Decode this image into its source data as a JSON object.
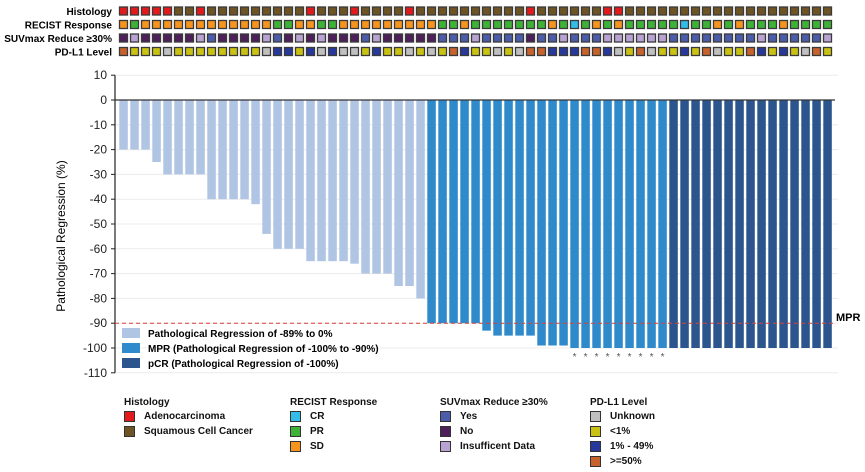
{
  "chart_data": {
    "type": "bar",
    "ylabel": "Pathological Regression (%)",
    "ylim": [
      -110,
      10
    ],
    "yticks": [
      10,
      0,
      -10,
      -20,
      -30,
      -40,
      -50,
      -60,
      -70,
      -80,
      -90,
      -100,
      -110
    ],
    "grid": true,
    "reference_line": {
      "value": -90,
      "label": "MPR",
      "color": "#d9413a"
    },
    "values": [
      -20,
      -20,
      -20,
      -25,
      -30,
      -30,
      -30,
      -30,
      -40,
      -40,
      -40,
      -40,
      -42,
      -54,
      -60,
      -60,
      -60,
      -65,
      -65,
      -65,
      -65,
      -66,
      -70,
      -70,
      -70,
      -75,
      -75,
      -80,
      -90,
      -90,
      -90,
      -90,
      -90,
      -93,
      -95,
      -95,
      -95,
      -95,
      -99,
      -99,
      -99,
      -100,
      -100,
      -100,
      -100,
      -100,
      -100,
      -100,
      -100,
      -100,
      -100,
      -100,
      -100,
      -100,
      -100,
      -100,
      -100,
      -100,
      -100,
      -100,
      -100,
      -100,
      -100,
      -100,
      -100
    ],
    "groups": [
      "light",
      "light",
      "light",
      "light",
      "light",
      "light",
      "light",
      "light",
      "light",
      "light",
      "light",
      "light",
      "light",
      "light",
      "light",
      "light",
      "light",
      "light",
      "light",
      "light",
      "light",
      "light",
      "light",
      "light",
      "light",
      "light",
      "light",
      "light",
      "mpr",
      "mpr",
      "mpr",
      "mpr",
      "mpr",
      "mpr",
      "mpr",
      "mpr",
      "mpr",
      "mpr",
      "mpr",
      "mpr",
      "mpr",
      "mpr",
      "mpr",
      "mpr",
      "mpr",
      "mpr",
      "mpr",
      "mpr",
      "mpr",
      "mpr",
      "pcr",
      "pcr",
      "pcr",
      "pcr",
      "pcr",
      "pcr",
      "pcr",
      "pcr",
      "pcr",
      "pcr",
      "pcr",
      "pcr",
      "pcr",
      "pcr",
      "pcr"
    ],
    "starred": [
      42,
      43,
      44,
      45,
      46,
      47,
      48,
      49,
      50
    ],
    "star_symbol": "*",
    "legend": {
      "placement": "bottom-left",
      "items": [
        {
          "key": "light",
          "label": "Pathological Regression of -89% to 0%",
          "color": "#b0c4e3"
        },
        {
          "key": "mpr",
          "label": "MPR (Pathological Regression of -100% to -90%)",
          "color": "#2f8acb"
        },
        {
          "key": "pcr",
          "label": "pCR (Pathological Regression of -100%)",
          "color": "#2c558e"
        }
      ]
    },
    "tracks": [
      {
        "name": "Histology",
        "codes": [
          "A",
          "A",
          "A",
          "A",
          "A",
          "S",
          "S",
          "A",
          "S",
          "S",
          "S",
          "S",
          "S",
          "S",
          "S",
          "S",
          "S",
          "A",
          "S",
          "S",
          "S",
          "A",
          "S",
          "S",
          "S",
          "S",
          "A",
          "S",
          "S",
          "S",
          "S",
          "S",
          "S",
          "S",
          "S",
          "S",
          "S",
          "A",
          "S",
          "S",
          "S",
          "S",
          "S",
          "S",
          "A",
          "A",
          "S",
          "S",
          "S",
          "S",
          "S",
          "S",
          "S",
          "S",
          "S",
          "S",
          "S",
          "S",
          "S",
          "S",
          "S",
          "S",
          "S",
          "S",
          "S"
        ]
      },
      {
        "name": "RECIST Response",
        "codes": [
          "SD",
          "PR",
          "SD",
          "SD",
          "SD",
          "SD",
          "SD",
          "SD",
          "SD",
          "SD",
          "SD",
          "SD",
          "SD",
          "SD",
          "PR",
          "PR",
          "SD",
          "SD",
          "PR",
          "PR",
          "SD",
          "SD",
          "SD",
          "SD",
          "SD",
          "SD",
          "SD",
          "SD",
          "SD",
          "PR",
          "PR",
          "SD",
          "PR",
          "PR",
          "PR",
          "PR",
          "PR",
          "PR",
          "PR",
          "SD",
          "PR",
          "CR",
          "PR",
          "SD",
          "PR",
          "SD",
          "PR",
          "PR",
          "PR",
          "PR",
          "PR",
          "CR",
          "PR",
          "PR",
          "SD",
          "PR",
          "SD",
          "PR",
          "PR",
          "PR",
          "SD",
          "PR",
          "PR",
          "PR",
          "PR"
        ]
      },
      {
        "name": "SUVmax Reduce ≥30%",
        "codes": [
          "N",
          "I",
          "N",
          "N",
          "N",
          "N",
          "N",
          "I",
          "Y",
          "N",
          "N",
          "N",
          "N",
          "I",
          "Y",
          "N",
          "I",
          "N",
          "I",
          "N",
          "N",
          "N",
          "Y",
          "I",
          "N",
          "N",
          "N",
          "N",
          "N",
          "Y",
          "Y",
          "Y",
          "I",
          "Y",
          "Y",
          "Y",
          "Y",
          "N",
          "Y",
          "Y",
          "I",
          "Y",
          "Y",
          "Y",
          "I",
          "I",
          "I",
          "I",
          "I",
          "I",
          "Y",
          "Y",
          "Y",
          "Y",
          "Y",
          "Y",
          "Y",
          "Y",
          "I",
          "Y",
          "Y",
          "Y",
          "Y",
          "Y",
          "I"
        ]
      },
      {
        "name": "PD-L1 Level",
        "codes": [
          "H",
          "L",
          "L",
          "L",
          "U",
          "L",
          "L",
          "L",
          "L",
          "L",
          "L",
          "L",
          "L",
          "U",
          "M",
          "M",
          "L",
          "M",
          "U",
          "M",
          "U",
          "U",
          "L",
          "M",
          "L",
          "L",
          "U",
          "L",
          "U",
          "L",
          "H",
          "M",
          "L",
          "L",
          "U",
          "L",
          "U",
          "H",
          "H",
          "M",
          "M",
          "M",
          "H",
          "H",
          "M",
          "U",
          "L",
          "H",
          "U",
          "L",
          "L",
          "M",
          "L",
          "H",
          "U",
          "L",
          "L",
          "H",
          "M",
          "L",
          "M",
          "L",
          "U",
          "H",
          "L"
        ]
      }
    ],
    "track_legends": [
      {
        "title": "Histology",
        "items": [
          {
            "code": "A",
            "label": "Adenocarcinoma",
            "color": "#e31a1c"
          },
          {
            "code": "S",
            "label": "Squamous Cell Cancer",
            "color": "#6e5424"
          }
        ]
      },
      {
        "title": "RECIST Response",
        "items": [
          {
            "code": "CR",
            "label": "CR",
            "color": "#35bde9"
          },
          {
            "code": "PR",
            "label": "PR",
            "color": "#3db236"
          },
          {
            "code": "SD",
            "label": "SD",
            "color": "#f7941e"
          }
        ]
      },
      {
        "title": "SUVmax Reduce ≥30%",
        "items": [
          {
            "code": "Y",
            "label": "Yes",
            "color": "#4b5cab"
          },
          {
            "code": "N",
            "label": "No",
            "color": "#4e1f5a"
          },
          {
            "code": "I",
            "label": "Insufficent Data",
            "color": "#b9a3d2"
          }
        ]
      },
      {
        "title": "PD-L1 Level",
        "items": [
          {
            "code": "U",
            "label": "Unknown",
            "color": "#c0c0c0"
          },
          {
            "code": "L",
            "label": "<1%",
            "color": "#c9c212"
          },
          {
            "code": "M",
            "label": "1% - 49%",
            "color": "#27389c"
          },
          {
            "code": "H",
            "label": ">=50%",
            "color": "#c8622c"
          }
        ]
      }
    ]
  }
}
